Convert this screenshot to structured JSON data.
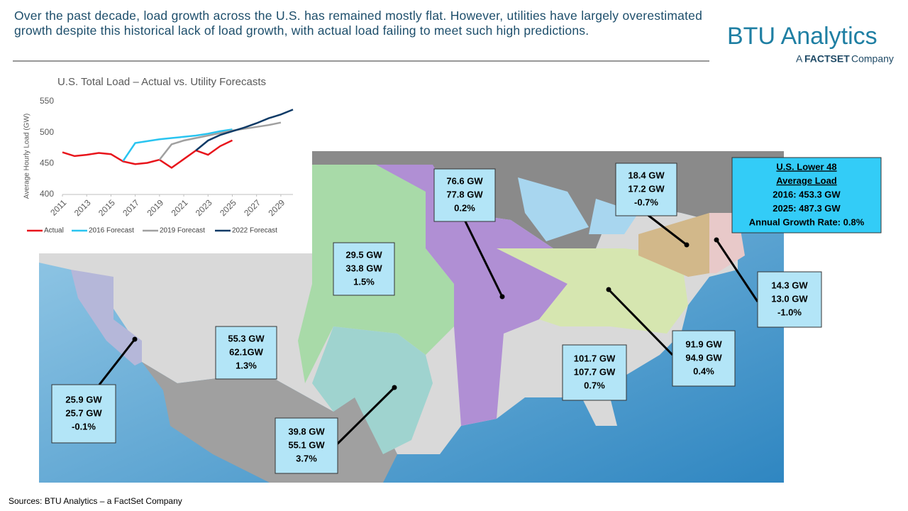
{
  "header": {
    "text": "Over the past decade, load growth across the U.S. has remained mostly flat. However, utilities have largely overestimated growth despite this historical lack of load growth, with actual load failing to meet such high predictions."
  },
  "logo": {
    "name": "BTU Analytics",
    "prefix": "A",
    "brand": "FACTSET",
    "suffix": "Company"
  },
  "chart_data": {
    "type": "line",
    "title": "U.S. Total Load – Actual vs. Utility Forecasts",
    "y_label": "Average Hourly Load (GW)",
    "x": [
      2011,
      2012,
      2013,
      2014,
      2015,
      2016,
      2017,
      2018,
      2019,
      2020,
      2021,
      2022,
      2023,
      2024,
      2025,
      2026,
      2027,
      2028,
      2029,
      2030
    ],
    "xlim": [
      2011,
      2030
    ],
    "xticks": [
      2011,
      2013,
      2015,
      2017,
      2019,
      2021,
      2023,
      2025,
      2027,
      2029
    ],
    "ylim": [
      400,
      550
    ],
    "yticks": [
      400,
      450,
      500,
      550
    ],
    "legend": "bottom",
    "series": [
      {
        "name": "Actual",
        "color": "#e8141b",
        "values": [
          468,
          462,
          464,
          467,
          465,
          453.3,
          449,
          451,
          456,
          443,
          457,
          471,
          464,
          478,
          487.3,
          null,
          null,
          null,
          null,
          null
        ]
      },
      {
        "name": "2016 Forecast",
        "color": "#29c4f0",
        "values": [
          null,
          null,
          null,
          null,
          null,
          454,
          483,
          486,
          489,
          491,
          493,
          495,
          498,
          502,
          505,
          null,
          null,
          null,
          null,
          null
        ]
      },
      {
        "name": "2019 Forecast",
        "color": "#a0a0a0",
        "values": [
          null,
          null,
          null,
          null,
          null,
          null,
          null,
          null,
          456,
          481,
          487,
          491,
          495,
          499,
          503,
          506,
          509,
          512,
          516,
          null
        ]
      },
      {
        "name": "2022 Forecast",
        "color": "#0e3a66",
        "values": [
          null,
          null,
          null,
          null,
          null,
          null,
          null,
          null,
          null,
          null,
          null,
          471,
          487,
          496,
          502,
          508,
          515,
          523,
          529,
          537
        ]
      }
    ]
  },
  "summary": {
    "lines": [
      "U.S. Lower 48",
      "Average Load",
      "2016: 453.3 GW",
      "2025: 487.3 GW",
      "Annual Growth Rate: 0.8%"
    ]
  },
  "callouts": [
    {
      "lines": [
        "76.6 GW",
        "77.8 GW",
        "0.2%"
      ]
    },
    {
      "lines": [
        "18.4 GW",
        "17.2 GW",
        "-0.7%"
      ]
    },
    {
      "lines": [
        "29.5 GW",
        "33.8 GW",
        "1.5%"
      ]
    },
    {
      "lines": [
        "14.3 GW",
        "13.0 GW",
        "-1.0%"
      ]
    },
    {
      "lines": [
        "55.3 GW",
        "62.1GW",
        "1.3%"
      ]
    },
    {
      "lines": [
        "91.9 GW",
        "94.9 GW",
        "0.4%"
      ]
    },
    {
      "lines": [
        "101.7 GW",
        "107.7 GW",
        "0.7%"
      ]
    },
    {
      "lines": [
        "25.9 GW",
        "25.7 GW",
        "-0.1%"
      ]
    },
    {
      "lines": [
        "39.8 GW",
        "55.1 GW",
        "3.7%"
      ]
    }
  ],
  "source": "Sources: BTU Analytics – a FactSet Company"
}
